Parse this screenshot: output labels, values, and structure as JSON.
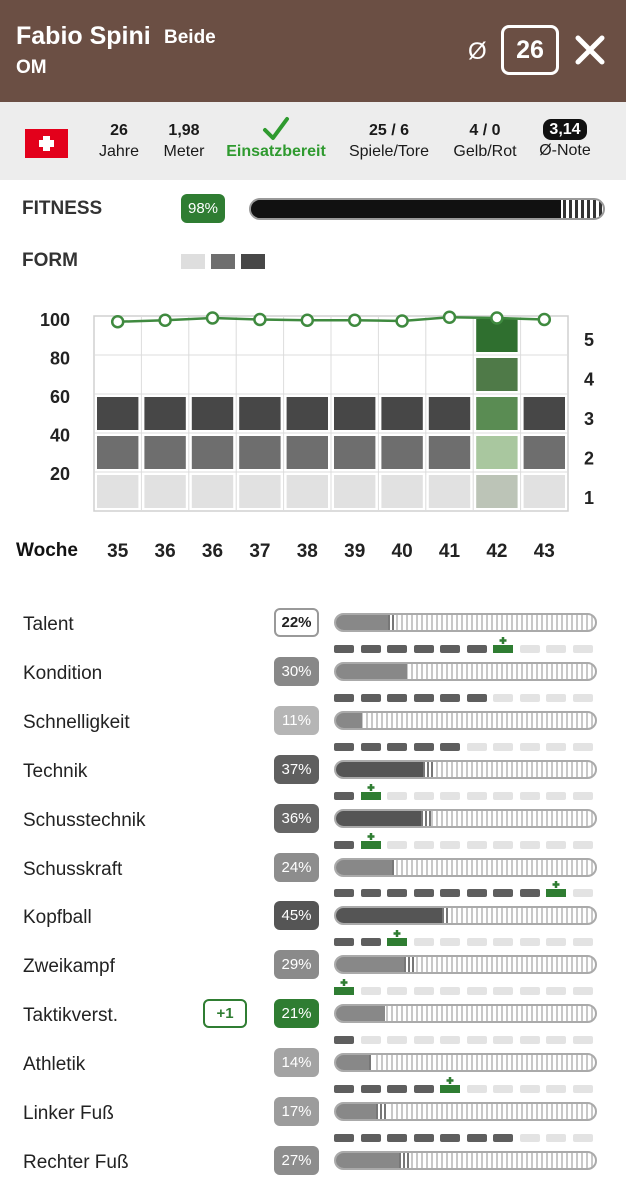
{
  "header": {
    "player_name": "Fabio Spini",
    "foot": "Beide",
    "position": "OM",
    "avg_symbol": "Ø",
    "age_value": "26"
  },
  "info": {
    "age": {
      "value": "26",
      "label": "Jahre"
    },
    "height": {
      "value": "1,98",
      "label": "Meter"
    },
    "status": {
      "label": "Einsatzbereit"
    },
    "games": {
      "value": "25 / 6",
      "label": "Spiele/Tore"
    },
    "cards": {
      "value": "4 / 0",
      "label": "Gelb/Rot"
    },
    "rating": {
      "value": "3,14",
      "label": "Ø-Note"
    }
  },
  "fitness": {
    "label": "FITNESS",
    "value_text": "98%",
    "value": 98
  },
  "form": {
    "label": "FORM",
    "squares": [
      "#dedede",
      "#6e6e6e",
      "#474747"
    ]
  },
  "colors": {
    "header_bg": "#6b4f44",
    "accent_green": "#2f7d32",
    "ready_green": "#2f9a2f"
  },
  "chart_data": {
    "type": "bar",
    "xlabel": "Woche",
    "categories": [
      "35",
      "36",
      "36",
      "37",
      "38",
      "39",
      "40",
      "41",
      "42",
      "43"
    ],
    "y_ticks": [
      "100",
      "80",
      "60",
      "40",
      "20"
    ],
    "y_range": [
      0,
      100
    ],
    "form_levels": [
      "5",
      "4",
      "3",
      "2",
      "1"
    ],
    "form_values": [
      3,
      3,
      3,
      3,
      3,
      3,
      3,
      3,
      5,
      3
    ],
    "highlight_index": 8,
    "fitness_line": [
      95,
      97,
      100,
      98,
      97,
      97,
      96,
      101,
      100,
      98
    ]
  },
  "skills": [
    {
      "name": "Talent",
      "pct": "22%",
      "value": 22,
      "style": "outline",
      "badge": "#ffffff",
      "segs": 0,
      "plus_index": null,
      "bonus": null,
      "stripe_width": 3
    },
    {
      "name": "Kondition",
      "pct": "30%",
      "value": 30,
      "style": "filled",
      "badge": "#888888",
      "segs": 6,
      "plus_index": 6,
      "bonus": null,
      "stripe_width": 0
    },
    {
      "name": "Schnelligkeit",
      "pct": "11%",
      "value": 11,
      "style": "filled",
      "badge": "#b5b5b5",
      "segs": 6,
      "plus_index": null,
      "bonus": null,
      "stripe_width": 0
    },
    {
      "name": "Technik",
      "pct": "37%",
      "value": 37,
      "style": "filled",
      "badge": "#5f5f5f",
      "segs": 5,
      "plus_index": null,
      "bonus": null,
      "stripe_width": 6
    },
    {
      "name": "Schusstechnik",
      "pct": "36%",
      "value": 36,
      "style": "filled",
      "badge": "#666666",
      "segs": 1,
      "plus_index": 1,
      "bonus": null,
      "stripe_width": 5
    },
    {
      "name": "Schusskraft",
      "pct": "24%",
      "value": 24,
      "style": "filled",
      "badge": "#8d8d8d",
      "segs": 1,
      "plus_index": 1,
      "bonus": null,
      "stripe_width": 2
    },
    {
      "name": "Kopfball",
      "pct": "45%",
      "value": 45,
      "style": "filled",
      "badge": "#555555",
      "segs": 8,
      "plus_index": 8,
      "bonus": null,
      "stripe_width": 4
    },
    {
      "name": "Zweikampf",
      "pct": "29%",
      "value": 29,
      "style": "filled",
      "badge": "#8a8a8a",
      "segs": 2,
      "plus_index": 2,
      "bonus": null,
      "stripe_width": 6
    },
    {
      "name": "Taktikverst.",
      "pct": "21%",
      "value": 21,
      "style": "green",
      "badge": "#2f7d32",
      "segs": 0,
      "plus_index": 0,
      "bonus": "+1",
      "stripe_width": 0
    },
    {
      "name": "Athletik",
      "pct": "14%",
      "value": 14,
      "style": "filled",
      "badge": "#a3a3a3",
      "segs": 1,
      "plus_index": null,
      "bonus": null,
      "stripe_width": 2
    },
    {
      "name": "Linker Fuß",
      "pct": "17%",
      "value": 17,
      "style": "filled",
      "badge": "#9c9c9c",
      "segs": 4,
      "plus_index": 4,
      "bonus": null,
      "stripe_width": 6
    },
    {
      "name": "Rechter Fuß",
      "pct": "27%",
      "value": 27,
      "style": "filled",
      "badge": "#8d8d8d",
      "segs": 7,
      "plus_index": null,
      "bonus": null,
      "stripe_width": 6
    }
  ]
}
